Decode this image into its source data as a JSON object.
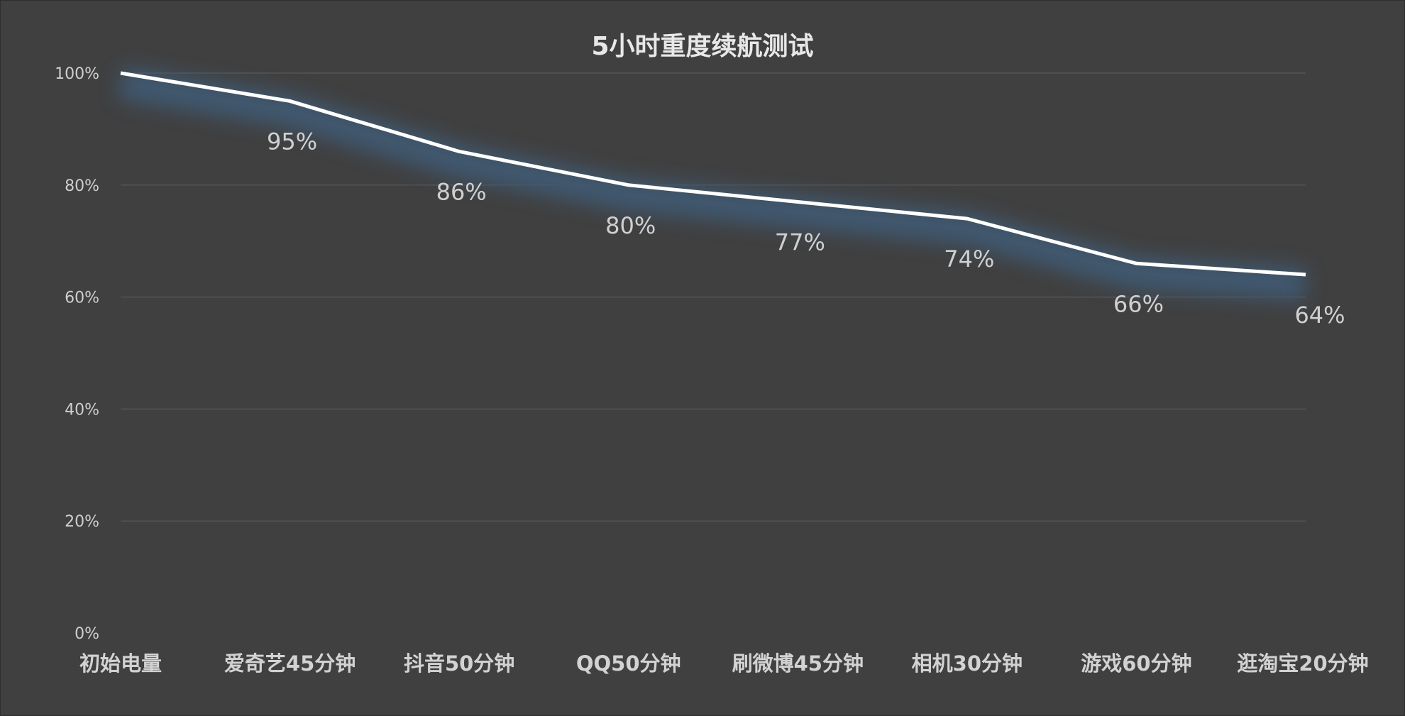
{
  "chart_data": {
    "type": "line",
    "title": "5小时重度续航测试",
    "xlabel": "",
    "ylabel": "",
    "categories": [
      "初始电量",
      "爱奇艺45分钟",
      "抖音50分钟",
      "QQ50分钟",
      "刷微博45分钟",
      "相机30分钟",
      "游戏60分钟",
      "逛淘宝20分钟"
    ],
    "series": [
      {
        "name": "电量",
        "values": [
          100,
          95,
          86,
          80,
          77,
          74,
          66,
          64
        ]
      }
    ],
    "data_labels": [
      "",
      "95%",
      "86%",
      "80%",
      "77%",
      "74%",
      "66%",
      "64%"
    ],
    "y_ticks": [
      "0%",
      "20%",
      "40%",
      "60%",
      "80%",
      "100%"
    ],
    "ylim": [
      0,
      100
    ],
    "grid": true,
    "legend": "none"
  },
  "colors": {
    "background": "#404040",
    "line": "#ffffff",
    "glow": "#3f5a73",
    "gridline": "#5a5a5a",
    "text": "#d0d0d0"
  }
}
